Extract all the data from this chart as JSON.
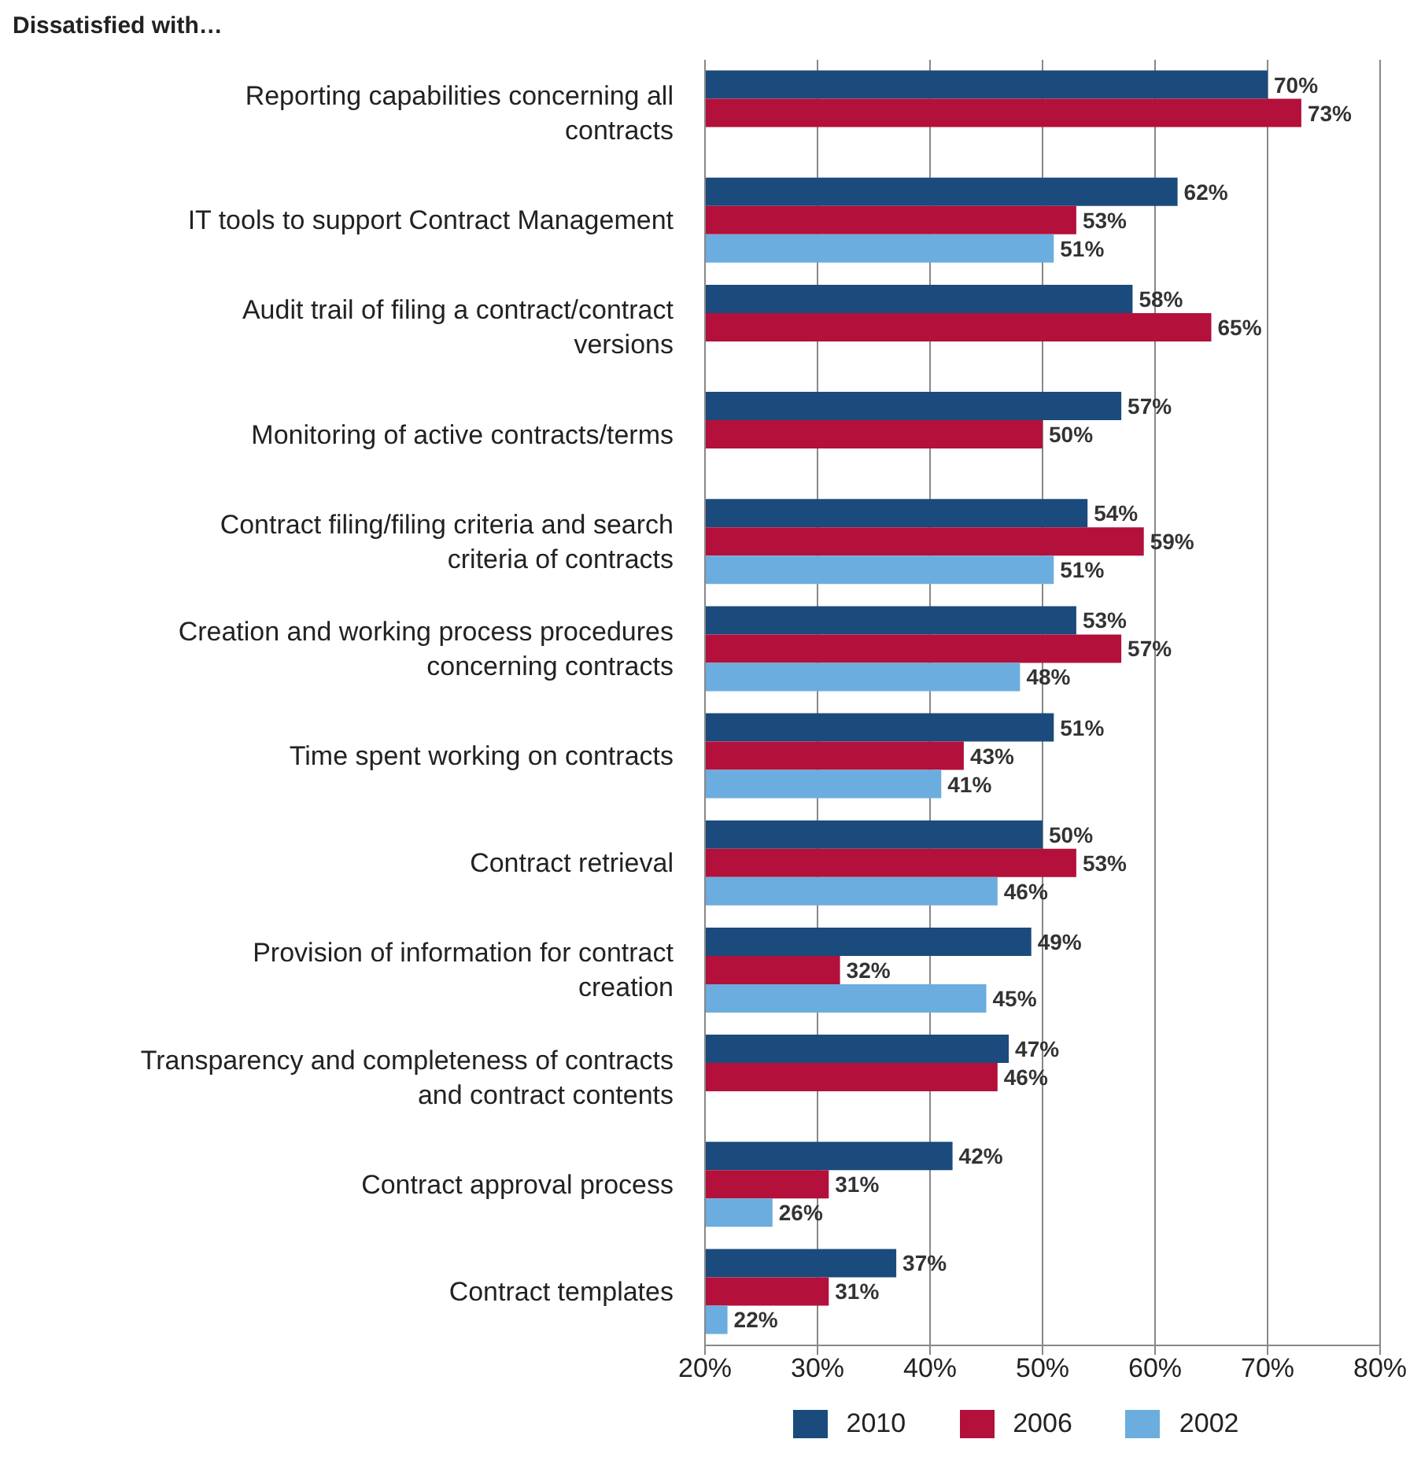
{
  "chart_data": {
    "type": "bar",
    "orientation": "horizontal",
    "title": "Dissatisfied with…",
    "categories": [
      "Reporting capabilities concerning all contracts",
      "IT tools to support Contract Management",
      "Audit trail of filing a contract/contract versions",
      "Monitoring of active contracts/terms",
      "Contract filing/filing criteria and search criteria of contracts",
      "Creation and working process procedures concerning contracts",
      "Time spent working on contracts",
      "Contract retrieval",
      "Provision of information for contract creation",
      "Transparency and completeness of contracts and contract contents",
      "Contract approval process",
      "Contract templates"
    ],
    "series": [
      {
        "name": "2010",
        "color": "#1b4a7c",
        "values": [
          70,
          62,
          58,
          57,
          54,
          53,
          51,
          50,
          49,
          47,
          42,
          37
        ],
        "value_labels": [
          "70%",
          "62%",
          "58%",
          "57%",
          "54%",
          "53%",
          "51%",
          "50%",
          "49%",
          "47%",
          "42%",
          "37%"
        ]
      },
      {
        "name": "2006",
        "color": "#b3103b",
        "values": [
          73,
          53,
          65,
          50,
          59,
          57,
          43,
          53,
          32,
          46,
          31,
          31
        ],
        "value_labels": [
          "73%",
          "53%",
          "65%",
          "50%",
          "59%",
          "57%",
          "43%",
          "53%",
          "32%",
          "46%",
          "31%",
          "31%"
        ]
      },
      {
        "name": "2002",
        "color": "#6badde",
        "values": [
          null,
          51,
          null,
          null,
          51,
          48,
          41,
          46,
          45,
          null,
          26,
          22
        ],
        "value_labels": [
          null,
          "51%",
          null,
          null,
          "51%",
          "48%",
          "41%",
          "46%",
          "45%",
          null,
          "26%",
          "22%"
        ]
      }
    ],
    "xlim": [
      20,
      80
    ],
    "xticks": [
      {
        "value": 20,
        "label": "20%"
      },
      {
        "value": 30,
        "label": "30%"
      },
      {
        "value": 40,
        "label": "40%"
      },
      {
        "value": 50,
        "label": "50%"
      },
      {
        "value": 60,
        "label": "60%"
      },
      {
        "value": 70,
        "label": "70%"
      },
      {
        "value": 80,
        "label": "80%"
      }
    ],
    "grid": "x",
    "legend": "bottom"
  }
}
